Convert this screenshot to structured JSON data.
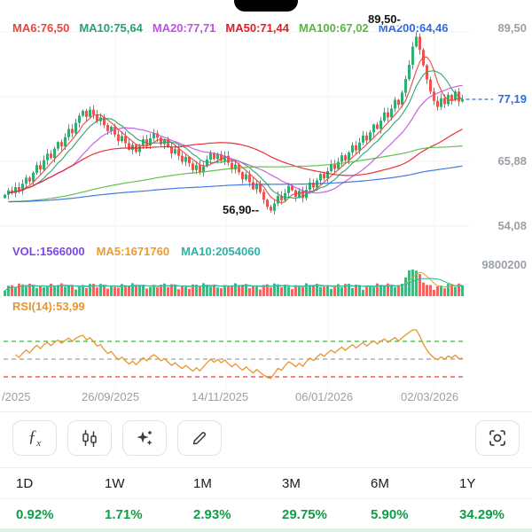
{
  "indicators": {
    "price_mas": [
      {
        "label": "MA6:76,50",
        "color": "#e8453c"
      },
      {
        "label": "MA10:75,64",
        "color": "#27a36c"
      },
      {
        "label": "MA20:77,71",
        "color": "#c052e2"
      },
      {
        "label": "MA50:71,44",
        "color": "#e51c23"
      },
      {
        "label": "MA100:67,02",
        "color": "#56b83f"
      },
      {
        "label": "MA200:64,46",
        "color": "#2e6be6"
      }
    ],
    "volume": [
      {
        "label": "VOL:1566000",
        "color": "#7a46e8"
      },
      {
        "label": "MA5:1671760",
        "color": "#ef9a2e"
      },
      {
        "label": "MA10:2054060",
        "color": "#27b5a8"
      }
    ],
    "rsi": {
      "label": "RSI(14):53,99",
      "color": "#e8962e"
    }
  },
  "chart_data": [
    {
      "type": "candlestick",
      "title": "price",
      "closes": [
        59.8,
        60.6,
        60.1,
        61.2,
        60.5,
        61.8,
        62.9,
        62.2,
        63.8,
        65.2,
        64.4,
        66.1,
        67.3,
        66.5,
        68.2,
        69.4,
        68.6,
        70.3,
        71.8,
        71.0,
        72.9,
        74.2,
        75.1,
        74.0,
        75.3,
        74.4,
        73.2,
        73.9,
        72.5,
        71.4,
        72.2,
        70.8,
        69.6,
        70.5,
        69.2,
        68.0,
        68.9,
        67.6,
        68.7,
        69.9,
        68.8,
        70.1,
        71.0,
        70.2,
        69.0,
        69.8,
        68.5,
        67.3,
        68.1,
        66.9,
        65.8,
        66.7,
        65.5,
        64.3,
        65.2,
        63.9,
        65.0,
        66.2,
        67.4,
        66.3,
        67.2,
        66.0,
        66.9,
        65.6,
        64.4,
        65.3,
        63.9,
        62.6,
        63.5,
        62.1,
        60.8,
        61.7,
        60.3,
        58.9,
        57.6,
        56.9,
        58.2,
        59.6,
        58.8,
        60.1,
        61.4,
        60.6,
        59.4,
        60.5,
        59.2,
        60.7,
        62.0,
        61.1,
        62.4,
        63.6,
        62.8,
        64.1,
        65.3,
        64.5,
        65.8,
        67.0,
        66.1,
        67.5,
        68.8,
        67.9,
        69.3,
        70.6,
        69.7,
        71.2,
        72.6,
        71.8,
        73.3,
        74.8,
        73.9,
        75.5,
        77.1,
        76.2,
        78.4,
        80.9,
        83.5,
        86.8,
        88.6,
        86.2,
        83.4,
        80.8,
        78.6,
        76.9,
        75.8,
        77.4,
        76.3,
        78.0,
        77.0,
        78.6,
        76.8,
        77.19
      ],
      "last_price": 77.19,
      "high_annotation": "89,50-",
      "low_annotation": "56,90--",
      "y_labels": [
        {
          "text": "89,50"
        },
        {
          "text": "77,19",
          "color": "#2e6be6"
        },
        {
          "text": "65,88"
        },
        {
          "text": "54,08"
        }
      ],
      "ylim": [
        52.5,
        91.2
      ],
      "x_labels": [
        "/2025",
        "26/09/2025",
        "14/11/2025",
        "06/01/2026",
        "02/03/2026"
      ],
      "ma_windows": [
        6,
        10,
        20,
        50,
        100,
        200
      ],
      "ma_values": [
        76.5,
        75.64,
        77.71,
        71.44,
        67.02,
        64.46
      ],
      "up_color": "#2fae73",
      "down_color": "#ef5350",
      "last_price_color": "#2e6be6"
    },
    {
      "type": "bar",
      "title": "volume",
      "vol": 1566000,
      "ma5": 1671760,
      "ma10": 2054060,
      "y_max_label": "9800200"
    },
    {
      "type": "line",
      "title": "RSI",
      "period": 14,
      "value": 53.99,
      "guides": [
        70,
        50,
        30
      ],
      "guide_colors": [
        "#2bc02b",
        "#9aa0a6",
        "#ef3b3b"
      ],
      "line_color": "#e8962e"
    }
  ],
  "toolbar": {
    "fx_main": "ƒ",
    "fx_sub": "x"
  },
  "table": {
    "headers": [
      "1D",
      "1W",
      "1M",
      "3M",
      "6M",
      "1Y"
    ],
    "values": [
      "0.92%",
      "1.71%",
      "2.93%",
      "29.75%",
      "5.90%",
      "34.29%"
    ],
    "positive_color": "#0f9d45"
  }
}
